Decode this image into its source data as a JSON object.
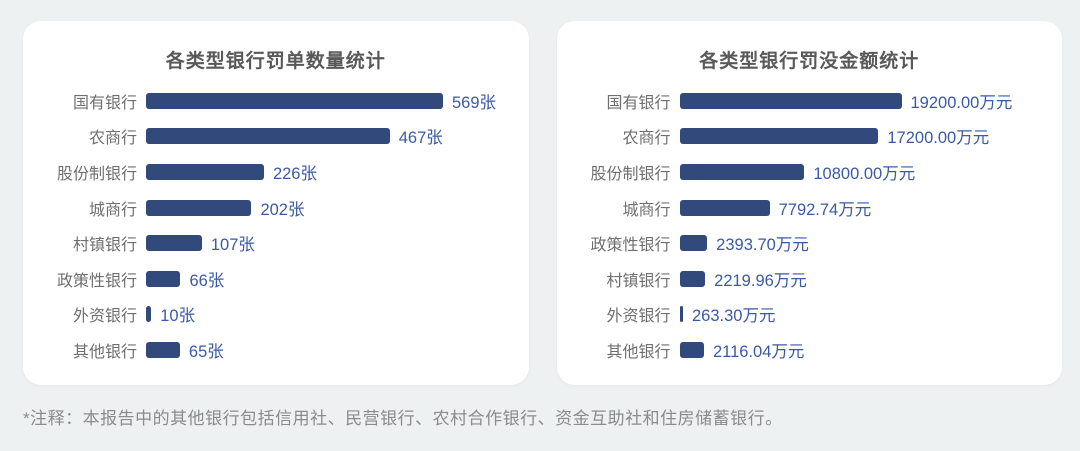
{
  "page": {
    "background_color": "#eef1f2",
    "card_color": "#ffffff",
    "note": "*注释：本报告中的其他银行包括信用社、民营银行、农村合作银行、资金互助社和住房储蓄银行。"
  },
  "colors": {
    "bar_fill": "#31497b",
    "value_text": "#3b5aa5",
    "category_text": "#6f6f6f",
    "title_text": "#595959",
    "note_text": "#8b8b8b"
  },
  "chart_data": [
    {
      "type": "bar",
      "orientation": "horizontal",
      "title": "各类型银行罚单数量统计",
      "unit": "张",
      "categories": [
        "国有银行",
        "农商行",
        "股份制银行",
        "城商行",
        "村镇银行",
        "政策性银行",
        "外资银行",
        "其他银行"
      ],
      "values": [
        569,
        467,
        226,
        202,
        107,
        66,
        10,
        65
      ],
      "value_labels": [
        "569张",
        "467张",
        "226张",
        "202张",
        "107张",
        "66张",
        "10张",
        "65张"
      ],
      "xlim": [
        0,
        569
      ],
      "grid": false,
      "legend": "none"
    },
    {
      "type": "bar",
      "orientation": "horizontal",
      "title": "各类型银行罚没金额统计",
      "unit": "万元",
      "categories": [
        "国有银行",
        "农商行",
        "股份制银行",
        "城商行",
        "政策性银行",
        "村镇银行",
        "外资银行",
        "其他银行"
      ],
      "values": [
        19200.0,
        17200.0,
        10800.0,
        7792.74,
        2393.7,
        2219.96,
        263.3,
        2116.04
      ],
      "value_labels": [
        "19200.00万元",
        "17200.00万元",
        "10800.00万元",
        "7792.74万元",
        "2393.70万元",
        "2219.96万元",
        "263.30万元",
        "2116.04万元"
      ],
      "xlim": [
        0,
        19200
      ],
      "grid": false,
      "legend": "none"
    }
  ]
}
